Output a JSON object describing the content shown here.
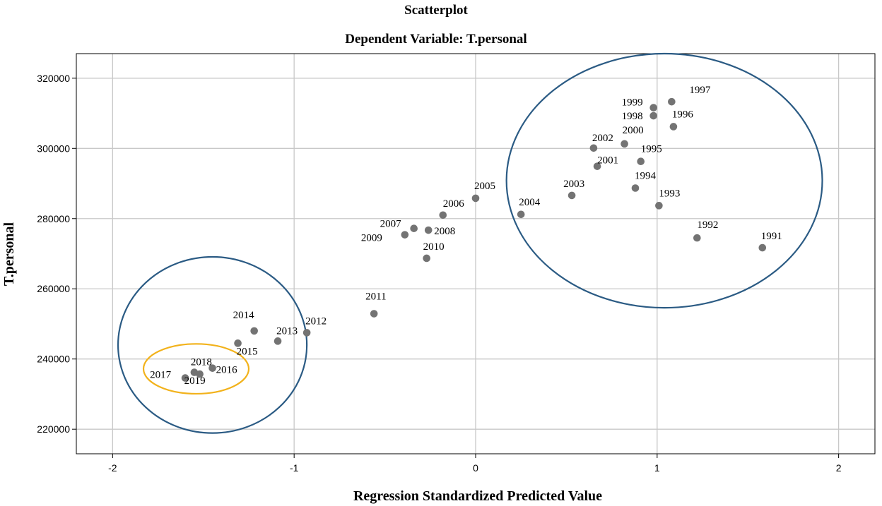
{
  "chart_data": {
    "type": "scatter",
    "title": "Scatterplot",
    "subtitle": "Dependent Variable: T.personal",
    "xlabel": "Regression Standardized Predicted Value",
    "ylabel": "T.personal",
    "xlim": [
      -2.2,
      2.2
    ],
    "ylim": [
      213000,
      327000
    ],
    "x_ticks": [
      -2,
      -1,
      0,
      1,
      2
    ],
    "x_tick_labels": [
      "-2",
      "-1",
      "0",
      "1",
      "2"
    ],
    "y_ticks": [
      220000,
      240000,
      260000,
      280000,
      300000,
      320000
    ],
    "y_tick_labels": [
      "220000",
      "240000",
      "260000",
      "280000",
      "300000",
      "320000"
    ],
    "grid": true,
    "points": [
      {
        "label": "1991",
        "x": 1.58,
        "y": 271700
      },
      {
        "label": "1992",
        "x": 1.22,
        "y": 274500
      },
      {
        "label": "1993",
        "x": 1.01,
        "y": 283700
      },
      {
        "label": "1994",
        "x": 0.88,
        "y": 288700
      },
      {
        "label": "1995",
        "x": 0.91,
        "y": 296300
      },
      {
        "label": "1996",
        "x": 1.09,
        "y": 306200
      },
      {
        "label": "1997",
        "x": 1.08,
        "y": 313300
      },
      {
        "label": "1998",
        "x": 0.98,
        "y": 309300
      },
      {
        "label": "1999",
        "x": 0.98,
        "y": 311600
      },
      {
        "label": "2000",
        "x": 0.82,
        "y": 301300
      },
      {
        "label": "2001",
        "x": 0.67,
        "y": 294900
      },
      {
        "label": "2002",
        "x": 0.65,
        "y": 300100
      },
      {
        "label": "2003",
        "x": 0.53,
        "y": 286600
      },
      {
        "label": "2004",
        "x": 0.25,
        "y": 281200
      },
      {
        "label": "2005",
        "x": 0.0,
        "y": 285800
      },
      {
        "label": "2006",
        "x": -0.18,
        "y": 281000
      },
      {
        "label": "2007",
        "x": -0.34,
        "y": 277200
      },
      {
        "label": "2008",
        "x": -0.26,
        "y": 276700
      },
      {
        "label": "2009",
        "x": -0.39,
        "y": 275400
      },
      {
        "label": "2010",
        "x": -0.27,
        "y": 268700
      },
      {
        "label": "2011",
        "x": -0.56,
        "y": 252900
      },
      {
        "label": "2012",
        "x": -0.93,
        "y": 247500
      },
      {
        "label": "2013",
        "x": -1.09,
        "y": 245100
      },
      {
        "label": "2014",
        "x": -1.22,
        "y": 248000
      },
      {
        "label": "2015",
        "x": -1.31,
        "y": 244500
      },
      {
        "label": "2016",
        "x": -1.45,
        "y": 237400
      },
      {
        "label": "2017",
        "x": -1.6,
        "y": 234600
      },
      {
        "label": "2018",
        "x": -1.55,
        "y": 236200
      },
      {
        "label": "2019",
        "x": -1.52,
        "y": 235700
      }
    ],
    "annotations": [
      {
        "shape": "ellipse",
        "color": "#2b5b84",
        "cx": 1.04,
        "cy": 290800,
        "rx": 0.87,
        "ry": 36200
      },
      {
        "shape": "ellipse",
        "color": "#2b5b84",
        "cx": -1.45,
        "cy": 244000,
        "rx": 0.52,
        "ry": 25100
      },
      {
        "shape": "ellipse",
        "color": "#f2b21b",
        "cx": -1.54,
        "cy": 237200,
        "rx": 0.29,
        "ry": 7100
      }
    ],
    "point_color": "#737373"
  }
}
